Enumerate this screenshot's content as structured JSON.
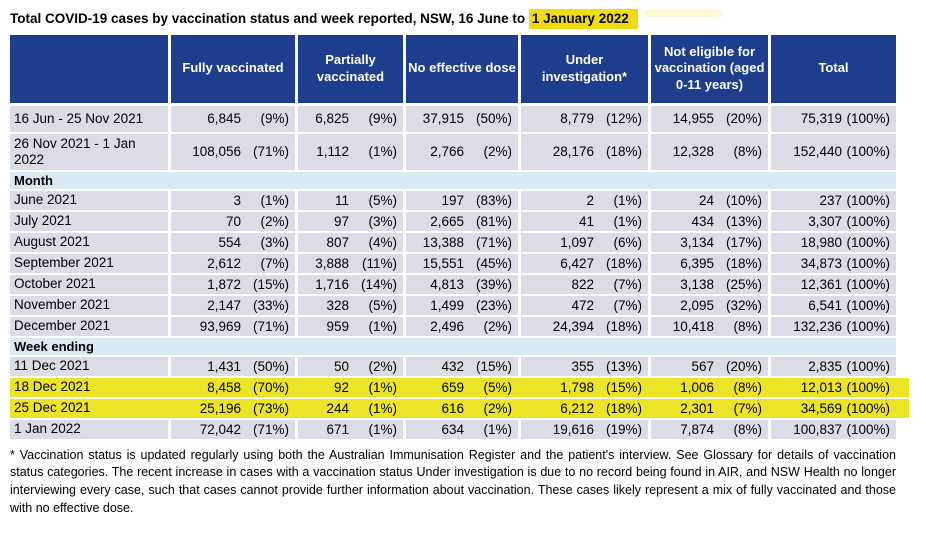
{
  "title": {
    "prefix": "Total COVID-19 cases by vaccination status and week reported, NSW, 16 June to ",
    "highlight": "1 January 2022"
  },
  "table": {
    "columns": [
      "",
      "Fully vaccinated",
      "Partially vaccinated",
      "No effective dose",
      "Under investigation*",
      "Not eligible for vaccination (aged 0-11 years)",
      "Total"
    ],
    "rows": [
      {
        "type": "data",
        "label": "16 Jun - 25 Nov 2021",
        "cells": [
          [
            "6,845",
            "(9%)"
          ],
          [
            "6,825",
            "(9%)"
          ],
          [
            "37,915",
            "(50%)"
          ],
          [
            "8,779",
            "(12%)"
          ],
          [
            "14,955",
            "(20%)"
          ],
          [
            "75,319",
            "(100%)"
          ]
        ]
      },
      {
        "type": "data",
        "label": "26 Nov 2021 - 1 Jan 2022",
        "cells": [
          [
            "108,056",
            "(71%)"
          ],
          [
            "1,112",
            "(1%)"
          ],
          [
            "2,766",
            "(2%)"
          ],
          [
            "28,176",
            "(18%)"
          ],
          [
            "12,328",
            "(8%)"
          ],
          [
            "152,440",
            "(100%)"
          ]
        ]
      },
      {
        "type": "section",
        "label": "Month"
      },
      {
        "type": "data",
        "label": "June 2021",
        "cells": [
          [
            "3",
            "(1%)"
          ],
          [
            "11",
            "(5%)"
          ],
          [
            "197",
            "(83%)"
          ],
          [
            "2",
            "(1%)"
          ],
          [
            "24",
            "(10%)"
          ],
          [
            "237",
            "(100%)"
          ]
        ]
      },
      {
        "type": "data",
        "label": "July 2021",
        "cells": [
          [
            "70",
            "(2%)"
          ],
          [
            "97",
            "(3%)"
          ],
          [
            "2,665",
            "(81%)"
          ],
          [
            "41",
            "(1%)"
          ],
          [
            "434",
            "(13%)"
          ],
          [
            "3,307",
            "(100%)"
          ]
        ]
      },
      {
        "type": "data",
        "label": "August 2021",
        "cells": [
          [
            "554",
            "(3%)"
          ],
          [
            "807",
            "(4%)"
          ],
          [
            "13,388",
            "(71%)"
          ],
          [
            "1,097",
            "(6%)"
          ],
          [
            "3,134",
            "(17%)"
          ],
          [
            "18,980",
            "(100%)"
          ]
        ]
      },
      {
        "type": "data",
        "label": "September 2021",
        "cells": [
          [
            "2,612",
            "(7%)"
          ],
          [
            "3,888",
            "(11%)"
          ],
          [
            "15,551",
            "(45%)"
          ],
          [
            "6,427",
            "(18%)"
          ],
          [
            "6,395",
            "(18%)"
          ],
          [
            "34,873",
            "(100%)"
          ]
        ]
      },
      {
        "type": "data",
        "label": "October 2021",
        "cells": [
          [
            "1,872",
            "(15%)"
          ],
          [
            "1,716",
            "(14%)"
          ],
          [
            "4,813",
            "(39%)"
          ],
          [
            "822",
            "(7%)"
          ],
          [
            "3,138",
            "(25%)"
          ],
          [
            "12,361",
            "(100%)"
          ]
        ]
      },
      {
        "type": "data",
        "label": "November 2021",
        "cells": [
          [
            "2,147",
            "(33%)"
          ],
          [
            "328",
            "(5%)"
          ],
          [
            "1,499",
            "(23%)"
          ],
          [
            "472",
            "(7%)"
          ],
          [
            "2,095",
            "(32%)"
          ],
          [
            "6,541",
            "(100%)"
          ]
        ]
      },
      {
        "type": "data",
        "label": "December 2021",
        "cells": [
          [
            "93,969",
            "(71%)"
          ],
          [
            "959",
            "(1%)"
          ],
          [
            "2,496",
            "(2%)"
          ],
          [
            "24,394",
            "(18%)"
          ],
          [
            "10,418",
            "(8%)"
          ],
          [
            "132,236",
            "(100%)"
          ]
        ]
      },
      {
        "type": "section",
        "label": "Week ending"
      },
      {
        "type": "data",
        "label": "11 Dec 2021",
        "cells": [
          [
            "1,431",
            "(50%)"
          ],
          [
            "50",
            "(2%)"
          ],
          [
            "432",
            "(15%)"
          ],
          [
            "355",
            "(13%)"
          ],
          [
            "567",
            "(20%)"
          ],
          [
            "2,835",
            "(100%)"
          ]
        ]
      },
      {
        "type": "data",
        "label": "18 Dec 2021",
        "highlight": true,
        "cells": [
          [
            "8,458",
            "(70%)"
          ],
          [
            "92",
            "(1%)"
          ],
          [
            "659",
            "(5%)"
          ],
          [
            "1,798",
            "(15%)"
          ],
          [
            "1,006",
            "(8%)"
          ],
          [
            "12,013",
            "(100%)"
          ]
        ]
      },
      {
        "type": "data",
        "label": "25 Dec 2021",
        "highlight": true,
        "cells": [
          [
            "25,196",
            "(73%)"
          ],
          [
            "244",
            "(1%)"
          ],
          [
            "616",
            "(2%)"
          ],
          [
            "6,212",
            "(18%)"
          ],
          [
            "2,301",
            "(7%)"
          ],
          [
            "34,569",
            "(100%)"
          ]
        ]
      },
      {
        "type": "data",
        "label": "1 Jan 2022",
        "cells": [
          [
            "72,042",
            "(71%)"
          ],
          [
            "671",
            "(1%)"
          ],
          [
            "634",
            "(1%)"
          ],
          [
            "19,616",
            "(19%)"
          ],
          [
            "7,874",
            "(8%)"
          ],
          [
            "100,837",
            "(100%)"
          ]
        ]
      }
    ]
  },
  "footnote": "* Vaccination status is updated regularly using both the Australian Immunisation Register and the patient's interview. See Glossary for details of vaccination status categories. The recent increase in cases with a vaccination status Under investigation is due to no record being found in AIR, and NSW Health no longer interviewing every case, such that cases cannot provide further information about vaccination. These cases likely represent a mix of fully vaccinated and those with no effective dose.",
  "colors": {
    "header_bg": "#1e3d8c",
    "cell_bg": "#dcdce6",
    "section_bg": "#d9e9f6",
    "row_highlight": "#ece426",
    "title_highlight": "#f0dc0f"
  }
}
